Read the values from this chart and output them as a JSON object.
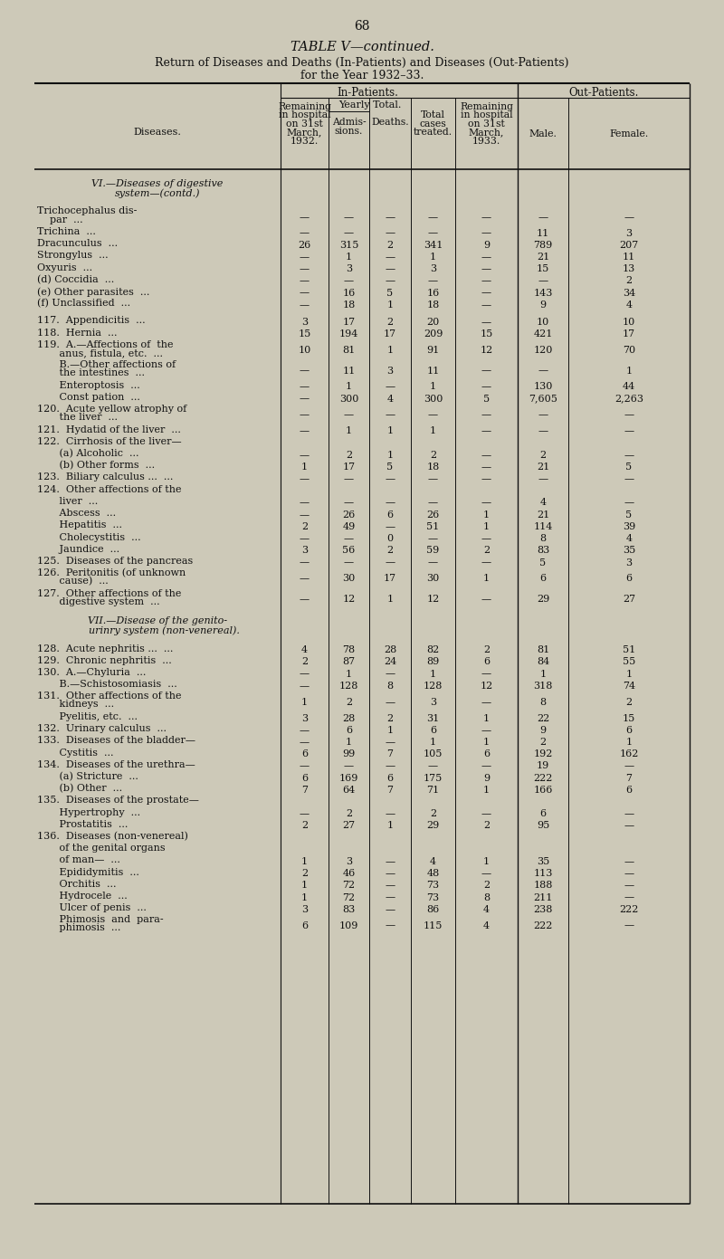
{
  "page_number": "68",
  "title_italic": "TABLE V—continued.",
  "title_main": "Return of Diseases and Deaths (In-Patients) and Diseases (Out-Patients)",
  "title_sub": "for the Year 1932–33.",
  "bg_color": "#cdc9b8",
  "col_header_inpatients": "In-Patients.",
  "col_header_outpatients": "Out-Patients.",
  "col_header_yearly": "Yearly Total.",
  "col_header_diseases": "Diseases.",
  "col_header_rem32": "Remaining\nin hospital\non 31st\nMarch,\n1932.",
  "col_header_adm": "Admis-\nsions.",
  "col_header_deaths": "Deaths.",
  "col_header_total": "Total\ncases\ntreated.",
  "col_header_rem33": "Remaining\nin hospital\non 31st\nMarch,\n1933.",
  "col_header_male": "Male.",
  "col_header_female": "Female.",
  "rows": [
    {
      "label": "VI.—Diseases of digestive",
      "label2": "system—(contd.)",
      "section": true,
      "data": []
    },
    {
      "spacer": 8
    },
    {
      "label": "Trichocephalus dis-",
      "label2": "    par  ...",
      "data": [
        "—",
        "—",
        "—",
        "—",
        "—",
        "—",
        "—"
      ]
    },
    {
      "label": "Trichina  ...",
      "data": [
        "—",
        "—",
        "—",
        "—",
        "—",
        "11",
        "3"
      ]
    },
    {
      "label": "Dracunculus  ...",
      "data": [
        "26",
        "315",
        "2",
        "341",
        "9",
        "789",
        "207"
      ]
    },
    {
      "label": "Strongylus  ...",
      "data": [
        "—",
        "1",
        "—",
        "1",
        "—",
        "21",
        "11"
      ]
    },
    {
      "label": "Oxyuris  ...",
      "data": [
        "—",
        "3",
        "—",
        "3",
        "—",
        "15",
        "13"
      ]
    },
    {
      "label": "(d) Coccidia  ...",
      "data": [
        "—",
        "—",
        "—",
        "—",
        "—",
        "—",
        "2"
      ]
    },
    {
      "label": "(e) Other parasites  ...",
      "data": [
        "—",
        "16",
        "5",
        "16",
        "—",
        "143",
        "34"
      ]
    },
    {
      "label": "(f) Unclassified  ...",
      "data": [
        "—",
        "18",
        "1",
        "18",
        "—",
        "9",
        "4"
      ]
    },
    {
      "spacer": 6
    },
    {
      "label": "117.  Appendicitis  ...",
      "data": [
        "3",
        "17",
        "2",
        "20",
        "—",
        "10",
        "10"
      ]
    },
    {
      "label": "118.  Hernia  ...",
      "data": [
        "15",
        "194",
        "17",
        "209",
        "15",
        "421",
        "17"
      ]
    },
    {
      "label": "119.  A.—Affections of  the",
      "label2": "       anus, fistula, etc.  ...",
      "data": [
        "10",
        "81",
        "1",
        "91",
        "12",
        "120",
        "70"
      ]
    },
    {
      "label": "       B.—Other affections of",
      "label2": "       the intestines  ...",
      "data": [
        "—",
        "11",
        "3",
        "11",
        "—",
        "—",
        "1"
      ]
    },
    {
      "label": "       Enteroptosis  ...",
      "data": [
        "—",
        "1",
        "—",
        "1",
        "—",
        "130",
        "44"
      ]
    },
    {
      "label": "       Const pation  ...",
      "data": [
        "—",
        "300",
        "4",
        "300",
        "5",
        "7,605",
        "2,263"
      ]
    },
    {
      "label": "120.  Acute yellow atrophy of",
      "label2": "       the liver  ...",
      "data": [
        "—",
        "—",
        "—",
        "—",
        "—",
        "—",
        "—"
      ]
    },
    {
      "label": "121.  Hydatid of the liver  ...",
      "data": [
        "—",
        "1",
        "1",
        "1",
        "—",
        "—",
        "—"
      ]
    },
    {
      "label": "122.  Cirrhosis of the liver—",
      "data": []
    },
    {
      "label": "       (a) Alcoholic  ...",
      "data": [
        "—",
        "2",
        "1",
        "2",
        "—",
        "2",
        "—"
      ]
    },
    {
      "label": "       (b) Other forms  ...",
      "data": [
        "1",
        "17",
        "5",
        "18",
        "—",
        "21",
        "5"
      ]
    },
    {
      "label": "123.  Biliary calculus ...  ...",
      "data": [
        "—",
        "—",
        "—",
        "—",
        "—",
        "—",
        "—"
      ]
    },
    {
      "label": "124.  Other affections of the",
      "data": []
    },
    {
      "label": "       liver  ...",
      "data": [
        "—",
        "—",
        "—",
        "—",
        "—",
        "4",
        "—"
      ]
    },
    {
      "label": "       Abscess  ...",
      "data": [
        "—",
        "26",
        "6",
        "26",
        "1",
        "21",
        "5"
      ]
    },
    {
      "label": "       Hepatitis  ...",
      "data": [
        "2",
        "49",
        "—",
        "51",
        "1",
        "114",
        "39"
      ]
    },
    {
      "label": "       Cholecystitis  ...",
      "data": [
        "—",
        "—",
        "0",
        "—",
        "—",
        "8",
        "4"
      ]
    },
    {
      "label": "       Jaundice  ...",
      "data": [
        "3",
        "56",
        "2",
        "59",
        "2",
        "83",
        "35"
      ]
    },
    {
      "label": "125.  Diseases of the pancreas",
      "data": [
        "—",
        "—",
        "—",
        "—",
        "—",
        "5",
        "3"
      ]
    },
    {
      "label": "126.  Peritonitis (of unknown",
      "label2": "       cause)  ...",
      "data": [
        "—",
        "30",
        "17",
        "30",
        "1",
        "6",
        "6"
      ]
    },
    {
      "label": "127.  Other affections of the",
      "label2": "       digestive system  ...",
      "data": [
        "—",
        "12",
        "1",
        "12",
        "—",
        "29",
        "27"
      ]
    },
    {
      "spacer": 8
    },
    {
      "label": "VII.—Disease of the genito-",
      "label2": "    urinry system (non-venereal).",
      "section": true,
      "data": []
    },
    {
      "spacer": 8
    },
    {
      "label": "128.  Acute nephritis ...  ...",
      "data": [
        "4",
        "78",
        "28",
        "82",
        "2",
        "81",
        "51"
      ]
    },
    {
      "label": "129.  Chronic nephritis  ...",
      "data": [
        "2",
        "87",
        "24",
        "89",
        "6",
        "84",
        "55"
      ]
    },
    {
      "label": "130.  A.—Chyluria  ...",
      "data": [
        "—",
        "1",
        "—",
        "1",
        "—",
        "1",
        "1"
      ]
    },
    {
      "label": "       B.—Schistosomiasis  ...",
      "data": [
        "—",
        "128",
        "8",
        "128",
        "12",
        "318",
        "74"
      ]
    },
    {
      "label": "131.  Other affections of the",
      "label2": "       kidneys  ...",
      "data": [
        "1",
        "2",
        "—",
        "3",
        "—",
        "8",
        "2"
      ]
    },
    {
      "label": "       Pyelitis, etc.  ...",
      "data": [
        "3",
        "28",
        "2",
        "31",
        "1",
        "22",
        "15"
      ]
    },
    {
      "label": "132.  Urinary calculus  ...",
      "data": [
        "—",
        "6",
        "1",
        "6",
        "—",
        "9",
        "6"
      ]
    },
    {
      "label": "133.  Diseases of the bladder—",
      "data": [
        "—",
        "1",
        "—",
        "1",
        "1",
        "2",
        "1"
      ]
    },
    {
      "label": "       Cystitis  ...",
      "data": [
        "6",
        "99",
        "7",
        "105",
        "6",
        "192",
        "162"
      ]
    },
    {
      "label": "134.  Diseases of the urethra—",
      "data": [
        "—",
        "—",
        "—",
        "—",
        "—",
        "19",
        "—"
      ]
    },
    {
      "label": "       (a) Stricture  ...",
      "data": [
        "6",
        "169",
        "6",
        "175",
        "9",
        "222",
        "7"
      ]
    },
    {
      "label": "       (b) Other  ...",
      "data": [
        "7",
        "64",
        "7",
        "71",
        "1",
        "166",
        "6"
      ]
    },
    {
      "label": "135.  Diseases of the prostate—",
      "data": []
    },
    {
      "label": "       Hypertrophy  ...",
      "data": [
        "—",
        "2",
        "—",
        "2",
        "—",
        "6",
        "—"
      ]
    },
    {
      "label": "       Prostatitis  ...",
      "data": [
        "2",
        "27",
        "1",
        "29",
        "2",
        "95",
        "—"
      ]
    },
    {
      "label": "136.  Diseases (non-venereal)",
      "data": []
    },
    {
      "label": "       of the genital organs",
      "data": []
    },
    {
      "label": "       of man—  ...",
      "data": [
        "1",
        "3",
        "—",
        "4",
        "1",
        "35",
        "—"
      ]
    },
    {
      "label": "       Epididymitis  ...",
      "data": [
        "2",
        "46",
        "—",
        "48",
        "—",
        "113",
        "—"
      ]
    },
    {
      "label": "       Orchitis  ...",
      "data": [
        "1",
        "72",
        "—",
        "73",
        "2",
        "188",
        "—"
      ]
    },
    {
      "label": "       Hydrocele  ...",
      "data": [
        "1",
        "72",
        "—",
        "73",
        "8",
        "211",
        "—"
      ]
    },
    {
      "label": "       Ulcer of penis  ...",
      "data": [
        "3",
        "83",
        "—",
        "86",
        "4",
        "238",
        "222"
      ]
    },
    {
      "label": "       Phimosis  and  para-",
      "label2": "       phimosis  ...",
      "data": [
        "6",
        "109",
        "—",
        "115",
        "4",
        "222",
        "—"
      ]
    }
  ]
}
